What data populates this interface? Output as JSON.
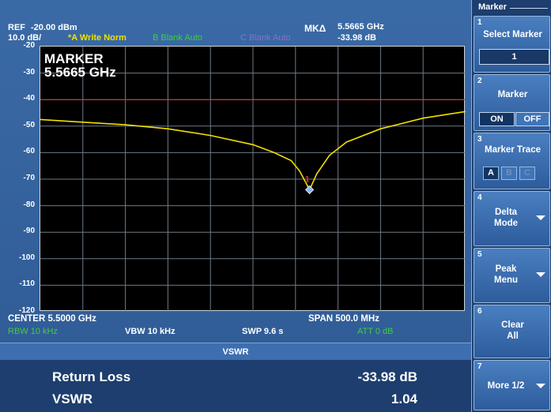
{
  "header": {
    "ref_label": "REF",
    "ref_value": "-20.00 dBm",
    "scale": "10.0 dB/",
    "trace_a": "*A Write Norm",
    "trace_b": "B Blank Auto",
    "trace_c": "C Blank Auto",
    "marker_delta_label": "MKΔ",
    "marker_freq": "5.5665 GHz",
    "marker_level": "-33.98 dB"
  },
  "plot": {
    "y_ticks": [
      "-20",
      "-30",
      "-40",
      "-50",
      "-60",
      "-70",
      "-80",
      "-90",
      "-100",
      "-110",
      "-120"
    ],
    "marker_annotation_title": "MARKER",
    "marker_annotation_freq": "5.5665 GHz",
    "marker_number": "1",
    "colors": {
      "trace": "#f0e000",
      "limit_line": "#e03030",
      "grid": "#6e7a86",
      "marker": "#8ab4ff"
    },
    "chart_data": {
      "type": "line",
      "xlabel": "",
      "ylabel": "",
      "x_unit": "GHz",
      "xlim": [
        5.25,
        5.75
      ],
      "ylim": [
        -120,
        -20
      ],
      "reference_line": -40,
      "series": [
        {
          "x": [
            5.25,
            5.3,
            5.35,
            5.4,
            5.45,
            5.5,
            5.525,
            5.545,
            5.555,
            5.5665,
            5.575,
            5.59,
            5.61,
            5.65,
            5.7,
            5.75
          ],
          "values": [
            -47.5,
            -48.5,
            -49.5,
            -51,
            -53.5,
            -57,
            -60,
            -63,
            -67,
            -74,
            -68,
            -61,
            -56,
            -51,
            -47,
            -44.5
          ]
        }
      ],
      "marker": {
        "x": 5.5665,
        "y": -73.98
      }
    }
  },
  "footer": {
    "center": "CENTER 5.5000 GHz",
    "span": "SPAN 500.0 MHz",
    "rbw": "RBW 10 kHz",
    "vbw": "VBW 10 kHz",
    "swp": "SWP 9.6 s",
    "att": "ATT 0 dB"
  },
  "vswr": {
    "title": "VSWR",
    "return_loss_label": "Return Loss",
    "return_loss_value": "-33.98 dB",
    "vswr_label": "VSWR",
    "vswr_value": "1.04"
  },
  "menu": {
    "title": "Marker",
    "items": [
      {
        "num": "1",
        "label": "Select Marker",
        "value": "1"
      },
      {
        "num": "2",
        "label": "Marker",
        "on": "ON",
        "off": "OFF"
      },
      {
        "num": "3",
        "label": "Marker Trace",
        "traces": [
          "A",
          "B",
          "C"
        ]
      },
      {
        "num": "4",
        "label1": "Delta",
        "label2": "Mode"
      },
      {
        "num": "5",
        "label1": "Peak",
        "label2": "Menu"
      },
      {
        "num": "6",
        "label1": "Clear",
        "label2": "All"
      },
      {
        "num": "7",
        "label": "More 1/2"
      }
    ]
  }
}
